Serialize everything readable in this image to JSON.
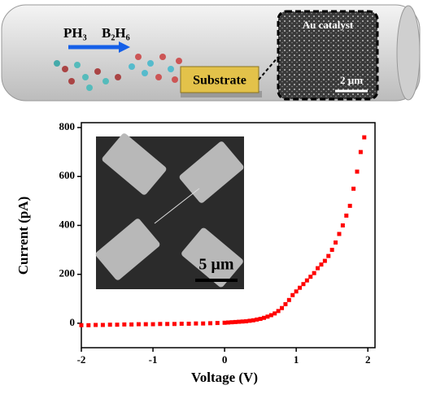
{
  "schematic": {
    "gas_1": "PH₃",
    "gas_2": "B₂H₆",
    "substrate": "Substrate",
    "inset_title": "Au catalyst",
    "inset_scale": "2 µm"
  },
  "chart_data": {
    "type": "scatter",
    "x_label": "Voltage (V)",
    "y_label": "Current (pA)",
    "inset_scale": "5 µm",
    "color": "#ff0000",
    "x": [
      -2,
      -1.9,
      -1.8,
      -1.7,
      -1.6,
      -1.5,
      -1.4,
      -1.3,
      -1.2,
      -1.1,
      -1,
      -0.9,
      -0.8,
      -0.7,
      -0.6,
      -0.5,
      -0.4,
      -0.3,
      -0.2,
      -0.1,
      0,
      0.05,
      0.1,
      0.15,
      0.2,
      0.25,
      0.3,
      0.35,
      0.4,
      0.45,
      0.5,
      0.55,
      0.6,
      0.65,
      0.7,
      0.75,
      0.8,
      0.85,
      0.9,
      0.95,
      1,
      1.05,
      1.1,
      1.15,
      1.2,
      1.25,
      1.3,
      1.35,
      1.4,
      1.45,
      1.5,
      1.55,
      1.6,
      1.65,
      1.7,
      1.75,
      1.8,
      1.85,
      1.9,
      1.95
    ],
    "values": [
      -8,
      -8,
      -7,
      -7,
      -6,
      -6,
      -5,
      -5,
      -4,
      -4,
      -4,
      -3,
      -3,
      -3,
      -2,
      -2,
      -1,
      -1,
      0,
      1,
      2,
      3,
      4,
      5,
      6,
      7,
      8,
      10,
      12,
      15,
      18,
      22,
      27,
      33,
      40,
      50,
      62,
      78,
      95,
      115,
      130,
      145,
      160,
      175,
      190,
      205,
      225,
      240,
      255,
      275,
      300,
      330,
      365,
      400,
      440,
      480,
      550,
      620,
      700,
      760
    ],
    "xlim": [
      -2,
      2.1
    ],
    "ylim": [
      -100,
      820
    ],
    "xticks": [
      -2,
      -1,
      0,
      1,
      2
    ],
    "yticks": [
      0,
      200,
      400,
      600,
      800
    ]
  }
}
